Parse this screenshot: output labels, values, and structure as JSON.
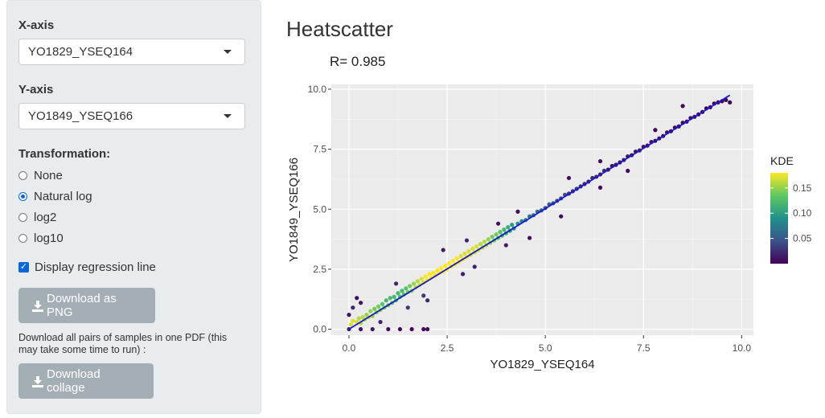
{
  "sidebar": {
    "x_axis": {
      "label": "X-axis",
      "selected": "YO1829_YSEQ164"
    },
    "y_axis": {
      "label": "Y-axis",
      "selected": "YO1849_YSEQ166"
    },
    "transformation": {
      "label": "Transformation:",
      "options": [
        "None",
        "Natural log",
        "log2",
        "log10"
      ],
      "selected": "Natural log"
    },
    "regression_checkbox": {
      "label": "Display regression line",
      "checked": true
    },
    "download_png_label": "Download as PNG",
    "collage_note": "Download all pairs of samples in one PDF (this may take some time to run) :",
    "download_collage_label": "Download collage",
    "icons": {
      "download": "download-icon",
      "caret": "chevron-down-icon"
    }
  },
  "main": {
    "title": "Heatscatter"
  },
  "chart_data": {
    "type": "scatter",
    "annotation": "R= 0.985",
    "r": 0.985,
    "xlabel": "YO1829_YSEQ164",
    "ylabel": "YO1849_YSEQ166",
    "xlim": [
      -0.45,
      10.3
    ],
    "ylim": [
      -0.25,
      10.2
    ],
    "x_ticks": [
      0.0,
      2.5,
      5.0,
      7.5,
      10.0
    ],
    "y_ticks": [
      0.0,
      2.5,
      5.0,
      7.5,
      10.0
    ],
    "x_tick_labels": [
      "0.0",
      "2.5",
      "5.0",
      "7.5",
      "10.0"
    ],
    "y_tick_labels": [
      "0.0",
      "2.5",
      "5.0",
      "7.5",
      "10.0"
    ],
    "grid": true,
    "regression_line": {
      "x": [
        0.0,
        9.7
      ],
      "y": [
        0.0,
        9.75
      ],
      "color": "#1a1acc"
    },
    "color_scale": {
      "title": "KDE",
      "palette": "viridis",
      "stops": [
        "#440154",
        "#3b528b",
        "#21918c",
        "#5ec962",
        "#fde725"
      ],
      "ticks": [
        0.05,
        0.1,
        0.15
      ],
      "tick_labels": [
        "0.05",
        "0.10",
        "0.15"
      ],
      "range": [
        0.0,
        0.18
      ]
    },
    "points": [
      [
        0.05,
        0.2,
        0.17
      ],
      [
        0.1,
        0.35,
        0.17
      ],
      [
        0.2,
        0.3,
        0.17
      ],
      [
        0.25,
        0.45,
        0.16
      ],
      [
        0.3,
        0.25,
        0.16
      ],
      [
        0.35,
        0.5,
        0.16
      ],
      [
        0.4,
        0.4,
        0.16
      ],
      [
        0.45,
        0.6,
        0.15
      ],
      [
        0.5,
        0.5,
        0.16
      ],
      [
        0.55,
        0.75,
        0.15
      ],
      [
        0.6,
        0.55,
        0.15
      ],
      [
        0.65,
        0.85,
        0.14
      ],
      [
        0.7,
        0.7,
        0.15
      ],
      [
        0.75,
        0.95,
        0.14
      ],
      [
        0.8,
        0.8,
        0.15
      ],
      [
        0.85,
        1.05,
        0.13
      ],
      [
        0.9,
        0.9,
        0.14
      ],
      [
        0.95,
        1.2,
        0.12
      ],
      [
        1.0,
        1.0,
        0.14
      ],
      [
        1.05,
        1.3,
        0.12
      ],
      [
        1.1,
        1.1,
        0.13
      ],
      [
        1.15,
        1.35,
        0.12
      ],
      [
        1.2,
        1.2,
        0.13
      ],
      [
        1.25,
        1.5,
        0.12
      ],
      [
        1.3,
        1.35,
        0.12
      ],
      [
        1.35,
        1.6,
        0.12
      ],
      [
        1.4,
        1.45,
        0.13
      ],
      [
        1.45,
        1.7,
        0.13
      ],
      [
        1.5,
        1.55,
        0.14
      ],
      [
        1.55,
        1.8,
        0.14
      ],
      [
        1.6,
        1.6,
        0.15
      ],
      [
        1.65,
        1.9,
        0.15
      ],
      [
        1.7,
        1.75,
        0.16
      ],
      [
        1.75,
        2.0,
        0.16
      ],
      [
        1.8,
        1.85,
        0.17
      ],
      [
        1.85,
        2.1,
        0.17
      ],
      [
        1.9,
        1.95,
        0.17
      ],
      [
        1.95,
        2.2,
        0.18
      ],
      [
        2.0,
        2.05,
        0.18
      ],
      [
        2.05,
        2.3,
        0.18
      ],
      [
        2.1,
        2.15,
        0.18
      ],
      [
        2.15,
        2.35,
        0.18
      ],
      [
        2.2,
        2.25,
        0.18
      ],
      [
        2.25,
        2.45,
        0.18
      ],
      [
        2.3,
        2.35,
        0.18
      ],
      [
        2.35,
        2.55,
        0.18
      ],
      [
        2.4,
        2.4,
        0.18
      ],
      [
        2.45,
        2.65,
        0.18
      ],
      [
        2.5,
        2.5,
        0.18
      ],
      [
        2.55,
        2.75,
        0.18
      ],
      [
        2.6,
        2.6,
        0.18
      ],
      [
        2.65,
        2.85,
        0.18
      ],
      [
        2.7,
        2.7,
        0.18
      ],
      [
        2.75,
        2.95,
        0.18
      ],
      [
        2.8,
        2.8,
        0.18
      ],
      [
        2.85,
        3.05,
        0.17
      ],
      [
        2.9,
        2.9,
        0.18
      ],
      [
        2.95,
        3.15,
        0.17
      ],
      [
        3.0,
        3.0,
        0.18
      ],
      [
        3.05,
        3.25,
        0.17
      ],
      [
        3.1,
        3.1,
        0.17
      ],
      [
        3.15,
        3.35,
        0.17
      ],
      [
        3.2,
        3.2,
        0.17
      ],
      [
        3.25,
        3.45,
        0.17
      ],
      [
        3.3,
        3.3,
        0.17
      ],
      [
        3.35,
        3.55,
        0.16
      ],
      [
        3.4,
        3.4,
        0.16
      ],
      [
        3.45,
        3.65,
        0.16
      ],
      [
        3.5,
        3.5,
        0.16
      ],
      [
        3.55,
        3.75,
        0.15
      ],
      [
        3.6,
        3.6,
        0.15
      ],
      [
        3.65,
        3.85,
        0.14
      ],
      [
        3.7,
        3.7,
        0.14
      ],
      [
        3.75,
        3.95,
        0.14
      ],
      [
        3.8,
        3.8,
        0.13
      ],
      [
        3.85,
        4.05,
        0.13
      ],
      [
        3.9,
        3.9,
        0.12
      ],
      [
        3.95,
        4.15,
        0.12
      ],
      [
        4.0,
        4.0,
        0.11
      ],
      [
        4.05,
        4.25,
        0.11
      ],
      [
        4.1,
        4.1,
        0.1
      ],
      [
        4.15,
        4.35,
        0.1
      ],
      [
        4.2,
        4.2,
        0.09
      ],
      [
        4.3,
        4.4,
        0.09
      ],
      [
        4.4,
        4.5,
        0.08
      ],
      [
        4.5,
        4.55,
        0.08
      ],
      [
        4.6,
        4.7,
        0.07
      ],
      [
        4.7,
        4.75,
        0.07
      ],
      [
        4.8,
        4.9,
        0.06
      ],
      [
        4.9,
        4.95,
        0.06
      ],
      [
        5.0,
        5.05,
        0.05
      ],
      [
        5.1,
        5.2,
        0.05
      ],
      [
        5.2,
        5.25,
        0.05
      ],
      [
        5.3,
        5.35,
        0.04
      ],
      [
        5.4,
        5.45,
        0.04
      ],
      [
        5.5,
        5.6,
        0.04
      ],
      [
        5.6,
        5.65,
        0.03
      ],
      [
        5.7,
        5.75,
        0.03
      ],
      [
        5.8,
        5.85,
        0.03
      ],
      [
        5.9,
        5.95,
        0.03
      ],
      [
        6.0,
        6.05,
        0.02
      ],
      [
        6.1,
        6.15,
        0.02
      ],
      [
        6.2,
        6.3,
        0.02
      ],
      [
        6.3,
        6.35,
        0.02
      ],
      [
        6.4,
        6.45,
        0.02
      ],
      [
        6.5,
        6.6,
        0.02
      ],
      [
        6.6,
        6.65,
        0.01
      ],
      [
        6.7,
        6.8,
        0.01
      ],
      [
        6.8,
        6.85,
        0.01
      ],
      [
        6.9,
        6.95,
        0.01
      ],
      [
        7.0,
        7.05,
        0.01
      ],
      [
        7.1,
        7.2,
        0.01
      ],
      [
        7.2,
        7.25,
        0.01
      ],
      [
        7.3,
        7.4,
        0.01
      ],
      [
        7.4,
        7.45,
        0.01
      ],
      [
        7.5,
        7.6,
        0.01
      ],
      [
        7.6,
        7.65,
        0.01
      ],
      [
        7.7,
        7.8,
        0.01
      ],
      [
        7.8,
        7.85,
        0.005
      ],
      [
        7.9,
        7.95,
        0.005
      ],
      [
        8.0,
        8.05,
        0.005
      ],
      [
        8.1,
        8.2,
        0.005
      ],
      [
        8.2,
        8.25,
        0.005
      ],
      [
        8.3,
        8.4,
        0.005
      ],
      [
        8.4,
        8.45,
        0.005
      ],
      [
        8.5,
        8.6,
        0.005
      ],
      [
        8.6,
        8.65,
        0.005
      ],
      [
        8.7,
        8.8,
        0.005
      ],
      [
        8.8,
        8.85,
        0.005
      ],
      [
        8.9,
        8.95,
        0.005
      ],
      [
        9.0,
        9.05,
        0.003
      ],
      [
        9.1,
        9.2,
        0.003
      ],
      [
        9.2,
        9.25,
        0.003
      ],
      [
        9.3,
        9.4,
        0.003
      ],
      [
        9.4,
        9.45,
        0.003
      ],
      [
        9.5,
        9.5,
        0.003
      ],
      [
        9.6,
        9.55,
        0.003
      ],
      [
        9.7,
        9.45,
        0.003
      ],
      [
        8.5,
        9.3,
        0.003
      ],
      [
        6.4,
        5.9,
        0.005
      ],
      [
        6.4,
        7.0,
        0.005
      ],
      [
        5.6,
        6.3,
        0.005
      ],
      [
        4.3,
        4.9,
        0.008
      ],
      [
        3.8,
        4.4,
        0.01
      ],
      [
        2.4,
        3.3,
        0.015
      ],
      [
        2.9,
        2.3,
        0.015
      ],
      [
        3.2,
        2.6,
        0.02
      ],
      [
        4.6,
        3.8,
        0.008
      ],
      [
        1.9,
        1.4,
        0.03
      ],
      [
        2.0,
        1.2,
        0.02
      ],
      [
        1.2,
        1.9,
        0.02
      ],
      [
        0.2,
        1.3,
        0.005
      ],
      [
        0.3,
        1.1,
        0.01
      ],
      [
        0.1,
        0.9,
        0.02
      ],
      [
        0.8,
        0.3,
        0.02
      ],
      [
        1.5,
        0.9,
        0.03
      ],
      [
        0.3,
        0.0,
        0.01
      ],
      [
        0.6,
        0.0,
        0.01
      ],
      [
        1.0,
        0.0,
        0.008
      ],
      [
        1.3,
        0.0,
        0.005
      ],
      [
        1.6,
        0.0,
        0.003
      ],
      [
        1.9,
        0.0,
        0.003
      ],
      [
        2.0,
        0.0,
        0.003
      ],
      [
        0.0,
        0.0,
        0.02
      ],
      [
        0.0,
        0.6,
        0.01
      ],
      [
        3.0,
        3.7,
        0.02
      ],
      [
        4.0,
        3.5,
        0.015
      ],
      [
        5.4,
        4.7,
        0.005
      ],
      [
        7.1,
        6.6,
        0.003
      ],
      [
        7.8,
        8.3,
        0.003
      ]
    ]
  }
}
